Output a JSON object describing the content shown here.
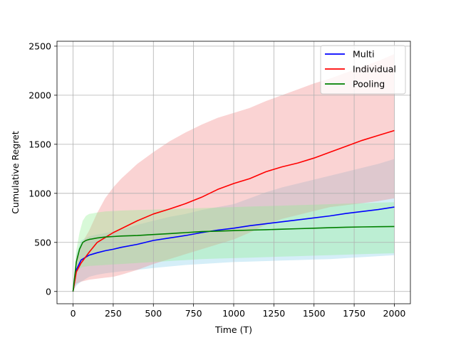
{
  "chart_data": {
    "type": "line",
    "title": "",
    "xlabel": "Time (T)",
    "ylabel": "Cumulative Regret",
    "xlim": [
      -100,
      2100
    ],
    "ylim": [
      -125,
      2550
    ],
    "xticks": [
      0,
      250,
      500,
      750,
      1000,
      1250,
      1500,
      1750,
      2000
    ],
    "yticks": [
      0,
      500,
      1000,
      1500,
      2000,
      2500
    ],
    "grid": true,
    "legend_position": "top-right",
    "series": [
      {
        "name": "Multi",
        "color": "#0000ff",
        "band_color": "#87ceeb",
        "x": [
          0,
          20,
          50,
          100,
          150,
          200,
          250,
          300,
          400,
          500,
          600,
          700,
          800,
          900,
          1000,
          1100,
          1200,
          1300,
          1400,
          1500,
          1600,
          1700,
          1800,
          1900,
          2000
        ],
        "y": [
          0,
          220,
          320,
          370,
          395,
          415,
          430,
          450,
          480,
          520,
          545,
          570,
          600,
          625,
          645,
          670,
          690,
          710,
          730,
          750,
          770,
          795,
          815,
          835,
          860
        ],
        "lower": [
          0,
          60,
          100,
          150,
          170,
          185,
          195,
          205,
          220,
          240,
          255,
          270,
          280,
          290,
          300,
          305,
          310,
          315,
          320,
          325,
          330,
          340,
          350,
          360,
          370
        ],
        "upper": [
          0,
          380,
          520,
          560,
          580,
          595,
          610,
          630,
          680,
          720,
          760,
          790,
          830,
          860,
          890,
          950,
          1010,
          1060,
          1100,
          1140,
          1180,
          1220,
          1260,
          1300,
          1350
        ]
      },
      {
        "name": "Individual",
        "color": "#ff0000",
        "band_color": "#f08080",
        "x": [
          0,
          20,
          50,
          100,
          150,
          200,
          250,
          300,
          400,
          500,
          600,
          700,
          800,
          900,
          1000,
          1100,
          1200,
          1300,
          1400,
          1500,
          1600,
          1700,
          1800,
          1900,
          2000
        ],
        "y": [
          0,
          200,
          290,
          400,
          500,
          550,
          600,
          640,
          720,
          790,
          840,
          895,
          960,
          1040,
          1100,
          1150,
          1220,
          1270,
          1310,
          1360,
          1420,
          1480,
          1540,
          1590,
          1640
        ],
        "lower": [
          0,
          80,
          100,
          120,
          130,
          140,
          150,
          170,
          220,
          280,
          330,
          380,
          430,
          480,
          530,
          600,
          680,
          740,
          780,
          820,
          860,
          880,
          900,
          920,
          950
        ],
        "upper": [
          0,
          350,
          480,
          620,
          800,
          950,
          1060,
          1150,
          1300,
          1420,
          1530,
          1620,
          1700,
          1770,
          1820,
          1870,
          1940,
          2000,
          2060,
          2120,
          2170,
          2230,
          2290,
          2350,
          2420
        ]
      },
      {
        "name": "Pooling",
        "color": "#008000",
        "band_color": "#90ee90",
        "x": [
          0,
          20,
          40,
          60,
          80,
          100,
          150,
          200,
          250,
          300,
          400,
          500,
          600,
          700,
          800,
          900,
          1000,
          1100,
          1200,
          1300,
          1400,
          1500,
          1600,
          1700,
          1800,
          1900,
          2000
        ],
        "y": [
          0,
          300,
          430,
          500,
          520,
          530,
          545,
          555,
          560,
          565,
          570,
          580,
          590,
          600,
          610,
          615,
          620,
          625,
          630,
          635,
          640,
          645,
          650,
          655,
          658,
          660,
          662
        ],
        "lower": [
          0,
          180,
          230,
          250,
          255,
          260,
          265,
          270,
          275,
          280,
          290,
          300,
          310,
          320,
          330,
          335,
          340,
          345,
          350,
          355,
          360,
          365,
          370,
          375,
          380,
          385,
          390
        ],
        "upper": [
          0,
          420,
          600,
          720,
          770,
          790,
          805,
          815,
          820,
          825,
          830,
          835,
          840,
          845,
          850,
          855,
          860,
          865,
          870,
          875,
          880,
          885,
          890,
          895,
          900,
          905,
          910
        ]
      }
    ]
  }
}
